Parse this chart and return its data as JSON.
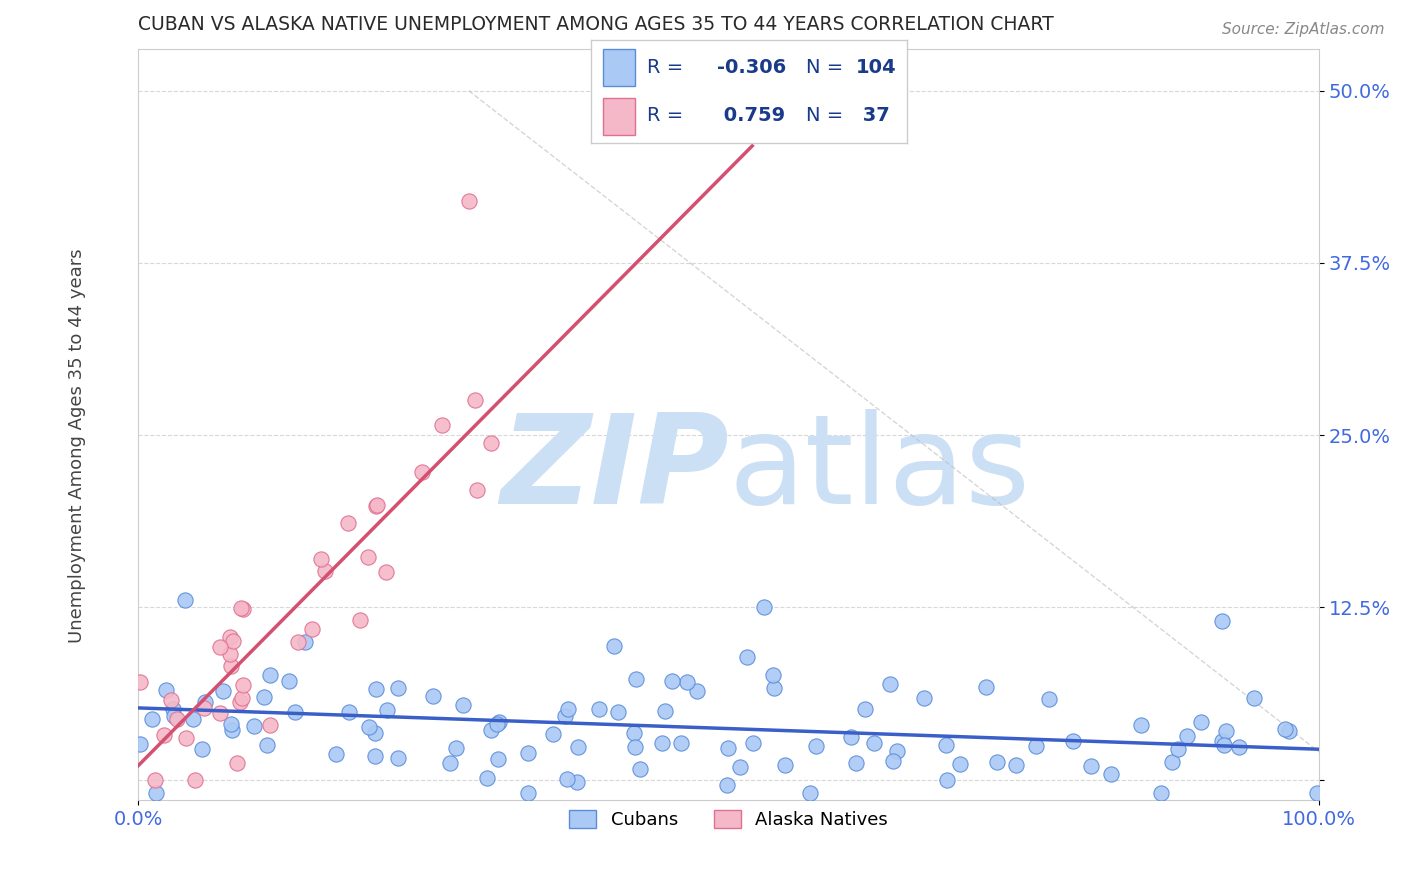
{
  "title": "CUBAN VS ALASKA NATIVE UNEMPLOYMENT AMONG AGES 35 TO 44 YEARS CORRELATION CHART",
  "source_text": "Source: ZipAtlas.com",
  "ylabel": "Unemployment Among Ages 35 to 44 years",
  "xlim": [
    0.0,
    1.0
  ],
  "ylim": [
    -0.015,
    0.53
  ],
  "yticks": [
    0.0,
    0.125,
    0.25,
    0.375,
    0.5
  ],
  "ytick_labels": [
    "",
    "12.5%",
    "25.0%",
    "37.5%",
    "50.0%"
  ],
  "xtick_labels": [
    "0.0%",
    "100.0%"
  ],
  "cuban_R": -0.306,
  "cuban_N": 104,
  "alaska_R": 0.759,
  "alaska_N": 37,
  "cuban_color": "#aac9f5",
  "alaska_color": "#f5b8c8",
  "cuban_edge_color": "#5b8dd9",
  "alaska_edge_color": "#e07090",
  "cuban_line_color": "#3a5fc8",
  "alaska_line_color": "#d45070",
  "background_color": "#ffffff",
  "grid_color": "#c8c8c8",
  "title_color": "#2a2a2a",
  "axis_label_color": "#444444",
  "tick_label_color": "#4169e1",
  "watermark_color": "#cce0f5",
  "legend_text_color": "#1a3a8a",
  "legend_border_color": "#cccccc"
}
